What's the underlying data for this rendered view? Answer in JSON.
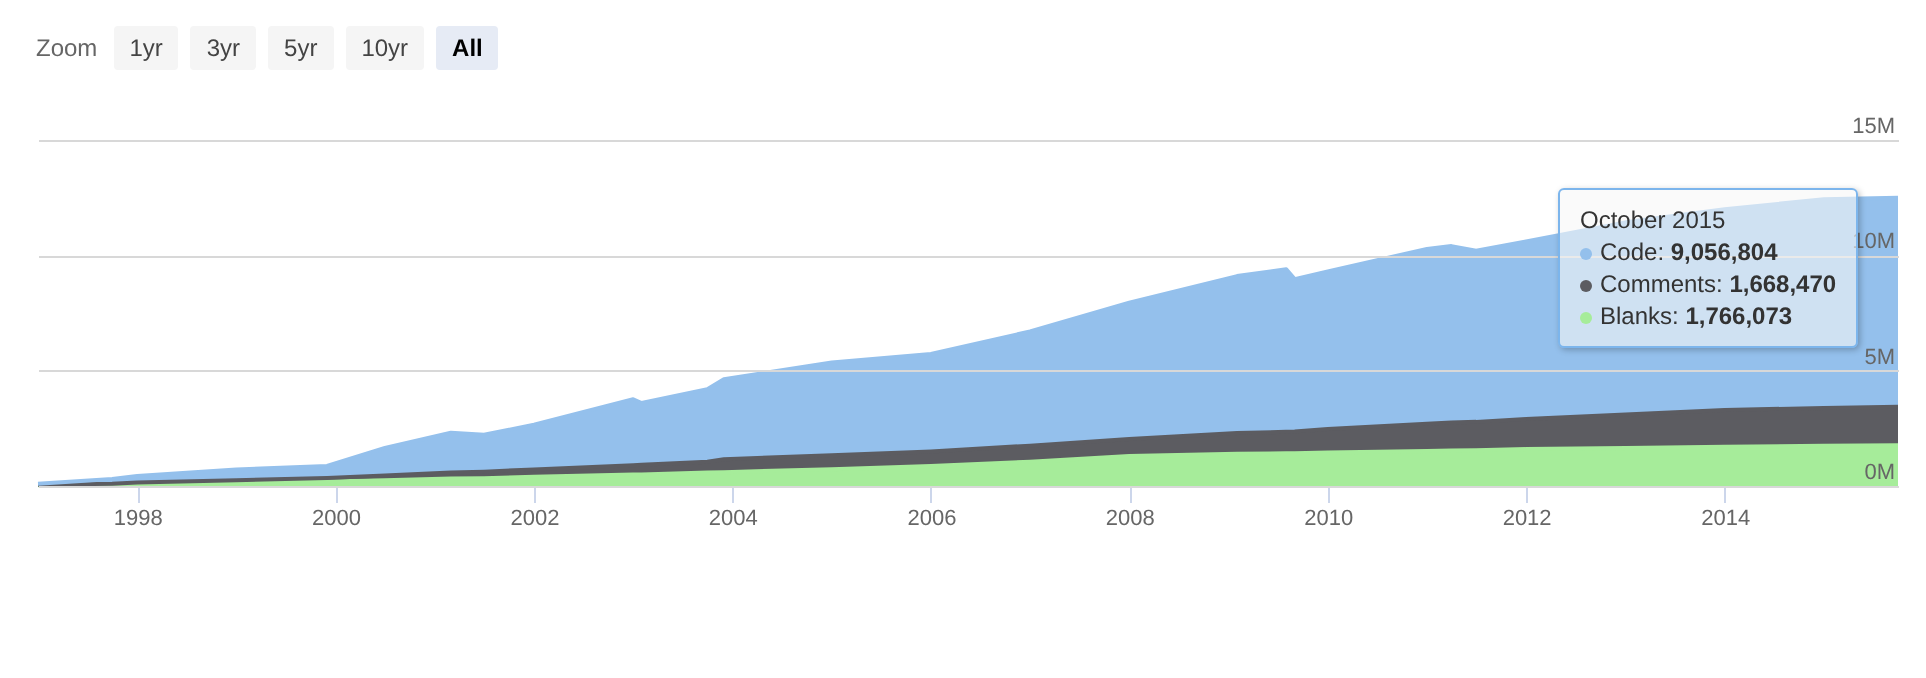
{
  "chart_data": {
    "type": "area",
    "stacked": true,
    "grid": "y",
    "annotations": [
      "Zoom",
      "1yr",
      "3yr",
      "5yr",
      "10yr",
      "All",
      "October 2015",
      "Code: 9,056,804",
      "Comments: 1,668,470",
      "Blanks: 1,766,073"
    ],
    "x": [
      "1997-01",
      "1997-10",
      "1998-01",
      "1999-01",
      "1999-12",
      "2000-07",
      "2001-03",
      "2001-07",
      "2002-01",
      "2003-01",
      "2003-02",
      "2003-10",
      "2003-12",
      "2005-01",
      "2006-01",
      "2007-01",
      "2008-01",
      "2009-02",
      "2009-08",
      "2009-09",
      "2010-01",
      "2011-01",
      "2011-04",
      "2011-07",
      "2012-01",
      "2013-01",
      "2014-01",
      "2015-01",
      "2015-10"
    ],
    "xlim": [
      "1997-01",
      "2015-10"
    ],
    "xticks": [
      {
        "value": "1998-01",
        "label": "1998"
      },
      {
        "value": "2000-01",
        "label": "2000"
      },
      {
        "value": "2002-01",
        "label": "2002"
      },
      {
        "value": "2004-01",
        "label": "2004"
      },
      {
        "value": "2006-01",
        "label": "2006"
      },
      {
        "value": "2008-01",
        "label": "2008"
      },
      {
        "value": "2010-01",
        "label": "2010"
      },
      {
        "value": "2012-01",
        "label": "2012"
      },
      {
        "value": "2014-01",
        "label": "2014"
      }
    ],
    "ylim": [
      0,
      15
    ],
    "yticks": [
      {
        "value": 0,
        "label": "0M"
      },
      {
        "value": 5,
        "label": "5M"
      },
      {
        "value": 10,
        "label": "10M"
      },
      {
        "value": 15,
        "label": "15M"
      }
    ],
    "series": [
      {
        "color": "#a6ec9a",
        "values": [
          0.03,
          0.06,
          0.08,
          0.14,
          0.2,
          0.25,
          0.32,
          0.34,
          0.4,
          0.5,
          0.5,
          0.58,
          0.6,
          0.73,
          0.87,
          1.05,
          1.3,
          1.4,
          1.42,
          1.42,
          1.45,
          1.52,
          1.54,
          1.55,
          1.6,
          1.65,
          1.7,
          1.74,
          1.766073
        ]
      },
      {
        "color": "#5c5c61",
        "values": [
          0.02,
          0.04,
          0.07,
          0.11,
          0.15,
          0.2,
          0.26,
          0.28,
          0.32,
          0.4,
          0.42,
          0.47,
          0.56,
          0.6,
          0.63,
          0.7,
          0.74,
          0.9,
          0.93,
          0.94,
          1.02,
          1.18,
          1.21,
          1.23,
          1.3,
          1.45,
          1.6,
          1.64,
          1.66847
        ]
      },
      {
        "color": "#94c0ec",
        "values": [
          0.05,
          0.2,
          0.28,
          0.47,
          0.52,
          1.2,
          1.73,
          1.6,
          1.94,
          2.86,
          2.68,
          3.15,
          3.47,
          4.02,
          4.22,
          4.95,
          5.91,
          6.8,
          7.05,
          6.61,
          6.83,
          7.58,
          7.65,
          7.42,
          7.7,
          8.33,
          8.7,
          9.05,
          9.056804
        ]
      }
    ]
  }
}
